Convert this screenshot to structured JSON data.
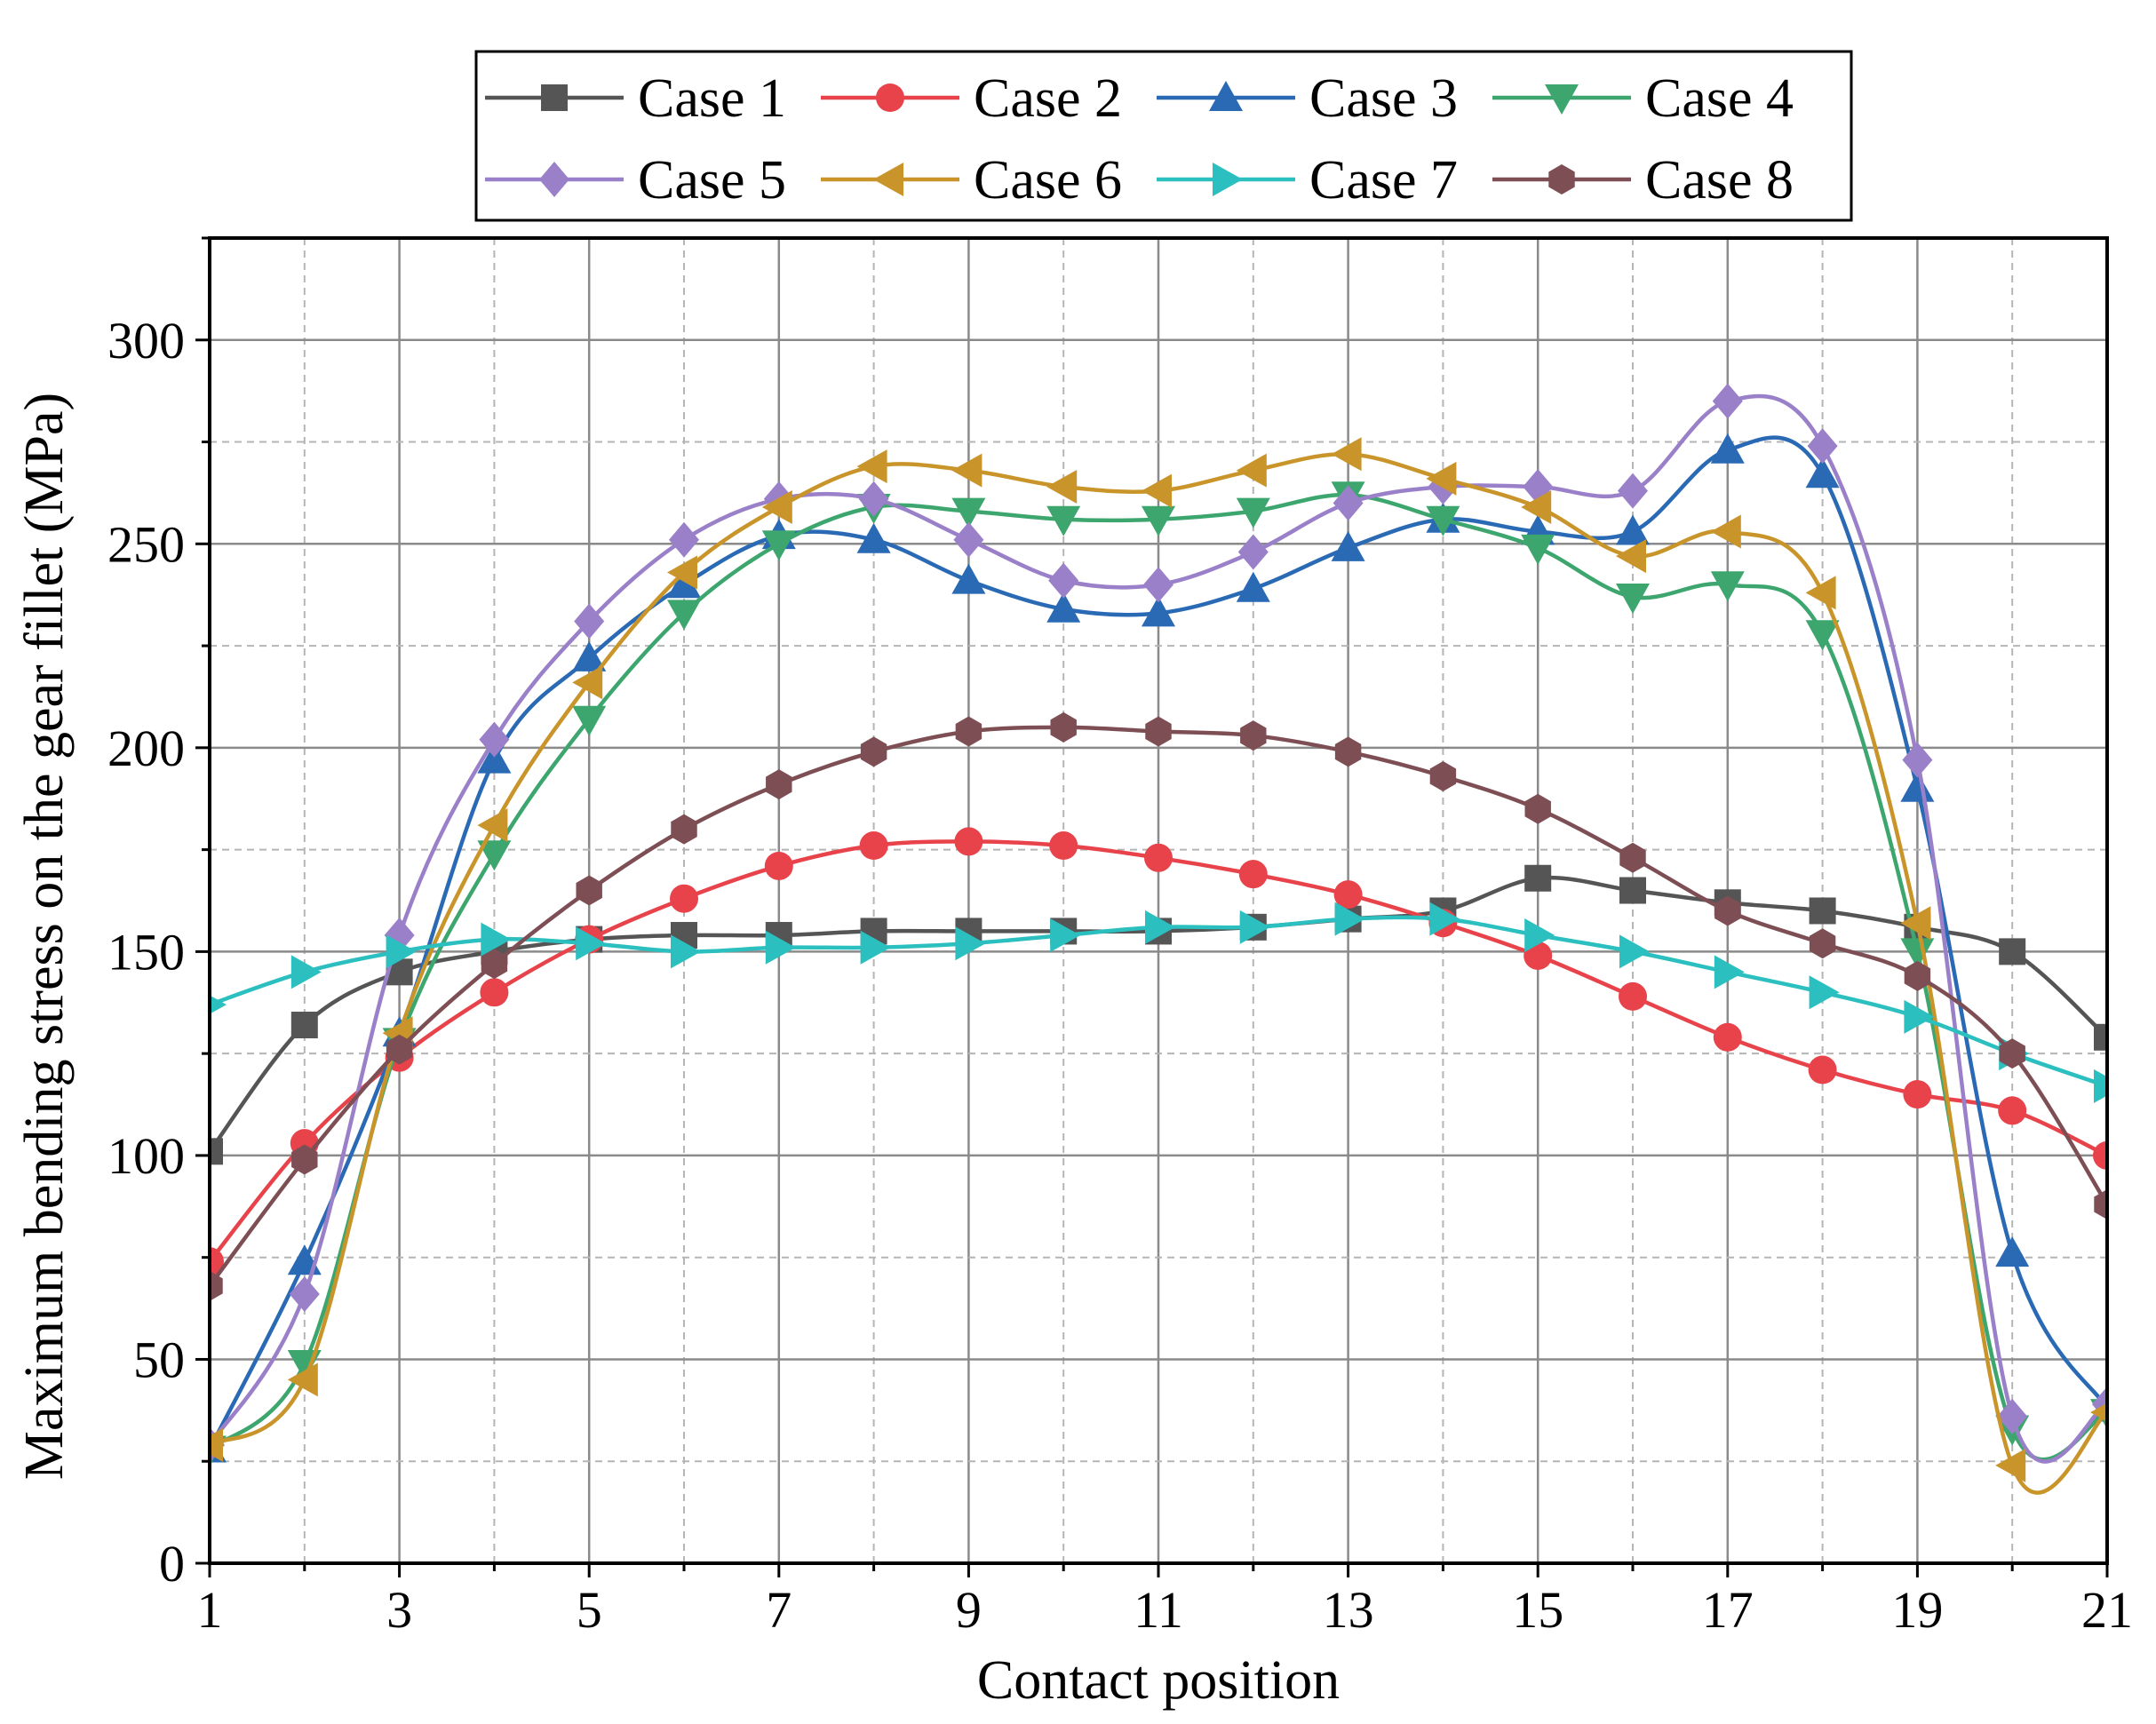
{
  "chart_data": {
    "type": "line",
    "title": "",
    "xlabel": "Contact position",
    "ylabel": "Maximum bending stress on the gear fillet (MPa)",
    "xlim": [
      1,
      21
    ],
    "ylim": [
      0,
      325
    ],
    "xticks": [
      1,
      3,
      5,
      7,
      9,
      11,
      13,
      15,
      17,
      19,
      21
    ],
    "yticks": [
      0,
      50,
      100,
      150,
      200,
      250,
      300
    ],
    "grid": true,
    "legend_position": "top",
    "x": [
      1,
      2,
      3,
      4,
      5,
      6,
      7,
      8,
      9,
      10,
      11,
      12,
      13,
      14,
      15,
      16,
      17,
      18,
      19,
      20,
      21
    ],
    "series": [
      {
        "name": "Case 1",
        "color": "#555555",
        "marker": "square",
        "values": [
          101,
          132,
          145,
          150,
          153,
          154,
          154,
          155,
          155,
          155,
          155,
          156,
          158,
          160,
          168,
          165,
          162,
          160,
          156,
          150,
          129
        ]
      },
      {
        "name": "Case 2",
        "color": "#e8434a",
        "marker": "circle",
        "values": [
          74,
          103,
          124,
          140,
          153,
          163,
          171,
          176,
          177,
          176,
          173,
          169,
          164,
          157,
          149,
          139,
          129,
          121,
          115,
          111,
          100
        ]
      },
      {
        "name": "Case 3",
        "color": "#2a6ab5",
        "marker": "triangle-up",
        "values": [
          28,
          74,
          130,
          197,
          222,
          240,
          252,
          251,
          241,
          234,
          233,
          239,
          249,
          256,
          253,
          253,
          273,
          267,
          190,
          76,
          38
        ]
      },
      {
        "name": "Case 4",
        "color": "#3da66e",
        "marker": "triangle-down",
        "values": [
          28,
          49,
          128,
          174,
          207,
          233,
          250,
          259,
          258,
          256,
          256,
          258,
          262,
          256,
          249,
          237,
          240,
          228,
          150,
          33,
          37
        ]
      },
      {
        "name": "Case 5",
        "color": "#9a7fc9",
        "marker": "diamond",
        "values": [
          29,
          66,
          154,
          202,
          231,
          251,
          261,
          261,
          251,
          241,
          240,
          248,
          260,
          264,
          264,
          263,
          285,
          274,
          197,
          36,
          39
        ]
      },
      {
        "name": "Case 6",
        "color": "#c9952a",
        "marker": "triangle-left",
        "values": [
          29,
          45,
          130,
          181,
          216,
          243,
          259,
          269,
          268,
          264,
          263,
          268,
          272,
          266,
          259,
          247,
          253,
          238,
          157,
          24,
          37
        ]
      },
      {
        "name": "Case 7",
        "color": "#2cbfc0",
        "marker": "triangle-right",
        "values": [
          137,
          145,
          150,
          153,
          152,
          150,
          151,
          151,
          152,
          154,
          156,
          156,
          158,
          158,
          154,
          150,
          145,
          140,
          134,
          125,
          117
        ]
      },
      {
        "name": "Case 8",
        "color": "#7d4f55",
        "marker": "hexagon",
        "values": [
          68,
          99,
          126,
          147,
          165,
          180,
          191,
          199,
          204,
          205,
          204,
          203,
          199,
          193,
          185,
          173,
          160,
          152,
          144,
          125,
          88
        ]
      }
    ]
  }
}
